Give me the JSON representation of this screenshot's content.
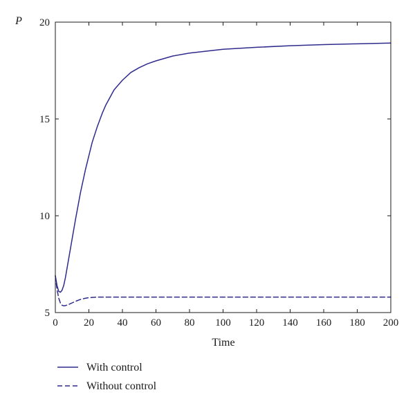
{
  "chart_data": {
    "type": "line",
    "title": "",
    "xlabel": "Time",
    "ylabel": "P",
    "xlim": [
      0,
      200
    ],
    "ylim": [
      5,
      20
    ],
    "xticks": [
      0,
      20,
      40,
      60,
      80,
      100,
      120,
      140,
      160,
      180,
      200
    ],
    "xtick_labels": [
      "0",
      "20",
      "40",
      "60",
      "80",
      "100",
      "120",
      "140",
      "160",
      "180",
      "200"
    ],
    "yticks": [
      5,
      10,
      15,
      20
    ],
    "ytick_labels": [
      "5",
      "10",
      "15",
      "20"
    ],
    "grid": false,
    "legend_position": "bottom-left, below plot",
    "series": [
      {
        "name": "With control",
        "style": "solid",
        "color": "#2e2a8c",
        "x": [
          0,
          1,
          2,
          3,
          4,
          5,
          6,
          8,
          10,
          12,
          15,
          18,
          20,
          22,
          25,
          28,
          30,
          35,
          40,
          45,
          50,
          55,
          60,
          70,
          80,
          90,
          100,
          120,
          140,
          160,
          180,
          200
        ],
        "y": [
          6.9,
          6.4,
          6.1,
          6.05,
          6.15,
          6.4,
          6.8,
          7.8,
          8.8,
          9.8,
          11.2,
          12.4,
          13.1,
          13.8,
          14.6,
          15.3,
          15.7,
          16.5,
          17.0,
          17.4,
          17.65,
          17.85,
          18.0,
          18.25,
          18.4,
          18.5,
          18.6,
          18.7,
          18.78,
          18.84,
          18.88,
          18.92
        ]
      },
      {
        "name": "Without control",
        "style": "dashed",
        "color": "#2e2a8c",
        "x": [
          0,
          1,
          2,
          3,
          4,
          5,
          6,
          8,
          10,
          12,
          15,
          18,
          20,
          25,
          30,
          40,
          60,
          100,
          150,
          200
        ],
        "y": [
          6.9,
          6.2,
          5.75,
          5.5,
          5.38,
          5.35,
          5.36,
          5.42,
          5.5,
          5.58,
          5.68,
          5.74,
          5.77,
          5.8,
          5.8,
          5.8,
          5.8,
          5.8,
          5.8,
          5.8
        ]
      }
    ]
  }
}
